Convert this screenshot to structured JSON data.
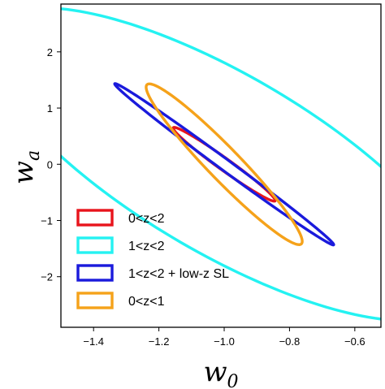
{
  "chart_data": {
    "type": "line",
    "title": "",
    "xlabel_main": "w",
    "xlabel_sub": "0",
    "ylabel_main": "w",
    "ylabel_sub": "a",
    "xlim": [
      -1.5,
      -0.52
    ],
    "ylim": [
      -2.9,
      2.85
    ],
    "xticks": [
      -1.4,
      -1.2,
      -1.0,
      -0.8,
      -0.6
    ],
    "xtick_labels": [
      "−1.4",
      "−1.2",
      "−1.0",
      "−0.8",
      "−0.6"
    ],
    "yticks": [
      2,
      1,
      0,
      -1,
      -2
    ],
    "ytick_labels": [
      "2",
      "1",
      "0",
      "−1",
      "−2"
    ],
    "grid": false,
    "legend_position": "bottom-left",
    "series": [
      {
        "name": "0<z<2",
        "color": "#e8141c",
        "ellipse": {
          "center": [
            -1.0,
            0.0
          ],
          "semi_major_end": [
            -0.845,
            -0.655
          ],
          "semi_minor_end": [
            -0.98,
            0.047
          ]
        }
      },
      {
        "name": "1<z<2",
        "color": "#24f2f2",
        "ellipse": {
          "center": [
            -1.0,
            0.0
          ],
          "semi_major_end": [
            -0.35,
            -2.7
          ],
          "semi_minor_end": [
            -0.675,
            0.67
          ]
        }
      },
      {
        "name": "1<z<2 + low-z SL",
        "color": "#1a1adc",
        "ellipse": {
          "center": [
            -1.0,
            0.0
          ],
          "semi_major_end": [
            -0.665,
            -1.435
          ],
          "semi_minor_end": [
            -0.982,
            0.047
          ]
        }
      },
      {
        "name": "0<z<1",
        "color": "#f5a21a",
        "ellipse": {
          "center": [
            -1.0,
            0.0
          ],
          "semi_major_end": [
            -0.77,
            -1.43
          ],
          "semi_minor_end": [
            -0.935,
            0.018
          ]
        }
      }
    ]
  }
}
